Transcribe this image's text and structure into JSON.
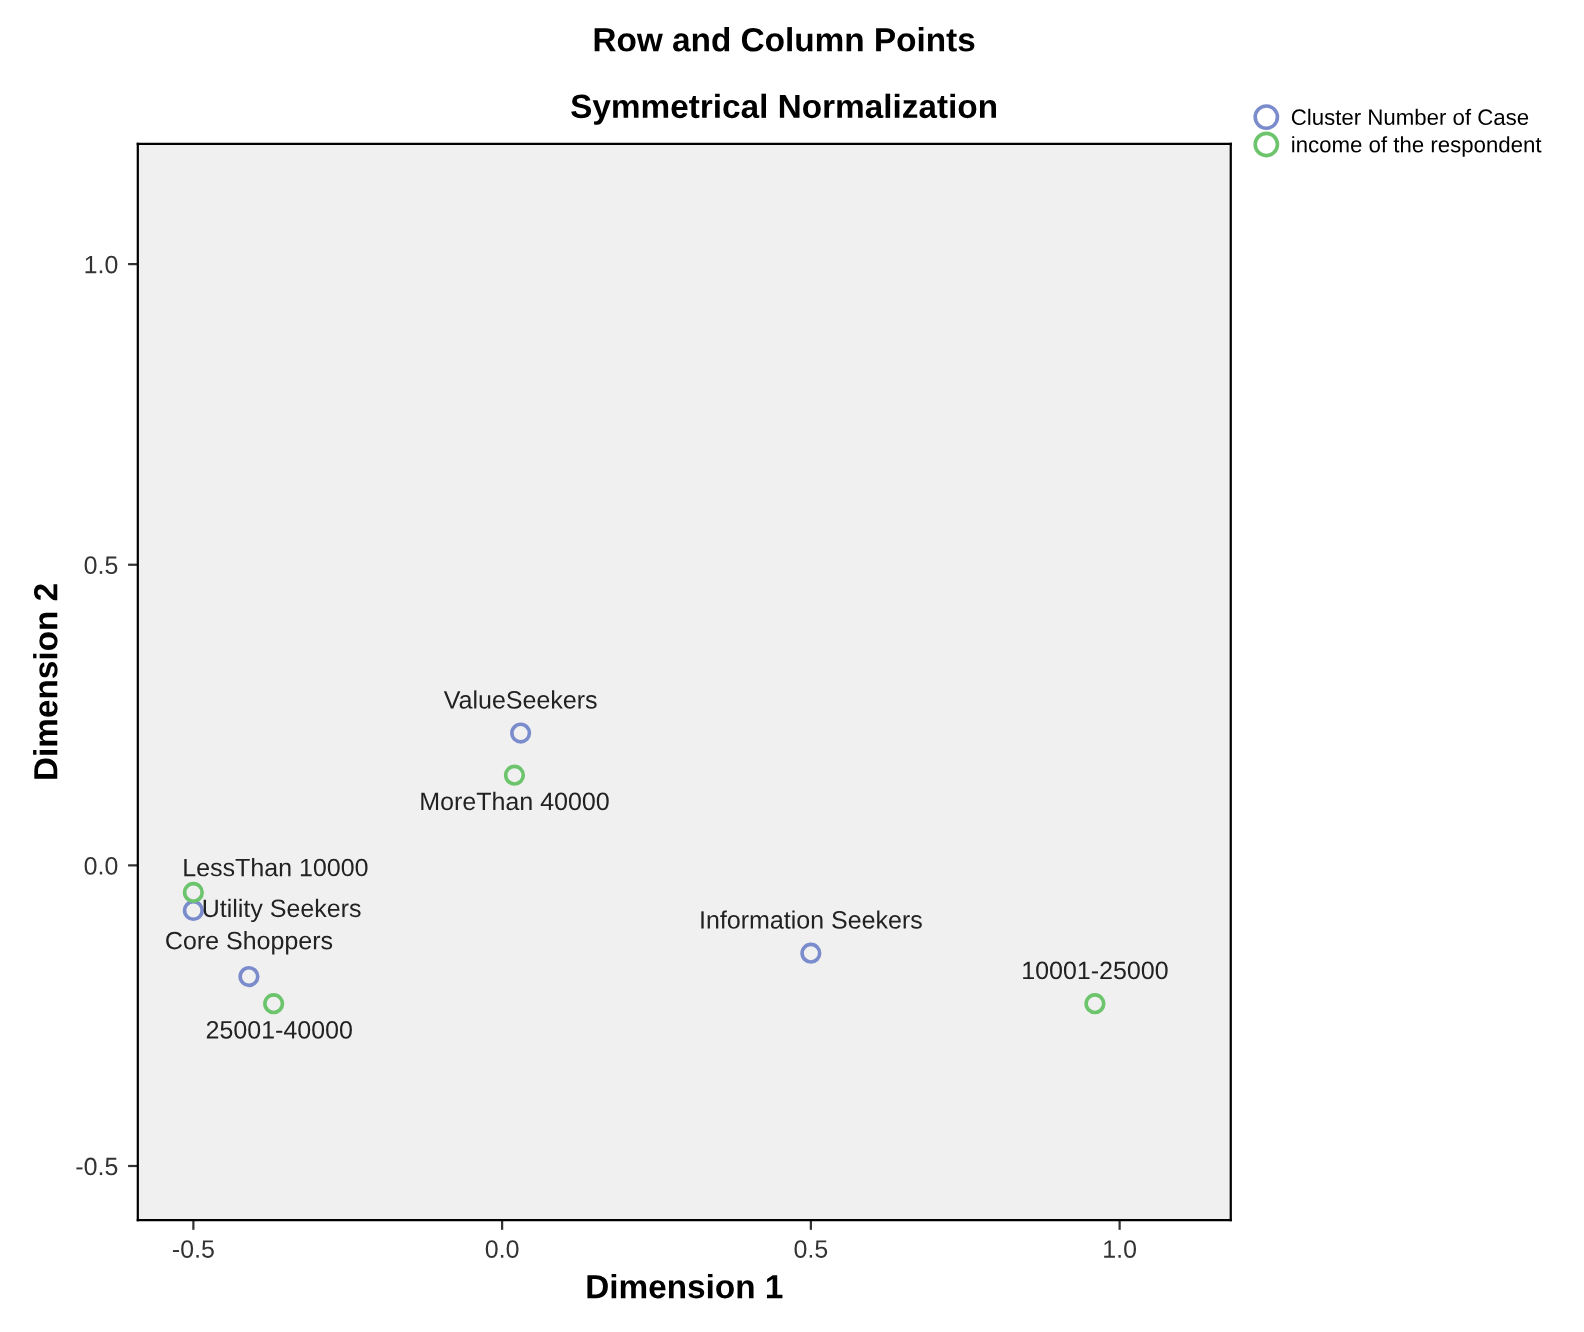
{
  "chart_data": {
    "type": "scatter",
    "title": "Row and Column Points",
    "subtitle": "Symmetrical Normalization",
    "xlabel": "Dimension 1",
    "ylabel": "Dimension 2",
    "series": [
      {
        "name": "Cluster Number of Case",
        "color": "#7b8ccc",
        "x": [
          0.03,
          -0.5,
          -0.41,
          0.5
        ],
        "values": [
          0.22,
          -0.075,
          -0.185,
          -0.146
        ]
      },
      {
        "name": "income of the respondent",
        "color": "#6cc46c",
        "x": [
          0.02,
          -0.5,
          -0.37,
          0.96
        ],
        "values": [
          0.15,
          -0.045,
          -0.23,
          -0.23
        ]
      }
    ],
    "annotations": [
      {
        "text": "ValueSeekers",
        "x": 0.03,
        "y": 0.22
      },
      {
        "text": "MoreThan 40000",
        "x": 0.02,
        "y": 0.15
      },
      {
        "text": "LessThan 10000",
        "x": -0.5,
        "y": -0.045
      },
      {
        "text": "Utility Seekers",
        "x": -0.5,
        "y": -0.075
      },
      {
        "text": "Core Shoppers",
        "x": -0.41,
        "y": -0.185
      },
      {
        "text": "25001-40000",
        "x": -0.37,
        "y": -0.23
      },
      {
        "text": "Information Seekers",
        "x": 0.5,
        "y": -0.146
      },
      {
        "text": "10001-25000",
        "x": 0.96,
        "y": -0.23
      }
    ],
    "xlim": [
      -0.59,
      1.18
    ],
    "ylim": [
      -0.59,
      1.2
    ],
    "xticks": [
      {
        "value": -0.5,
        "label": "-0.5"
      },
      {
        "value": 0,
        "label": "0.0"
      },
      {
        "value": 0.5,
        "label": "0.5"
      },
      {
        "value": 1,
        "label": "1.0"
      }
    ],
    "yticks": [
      {
        "value": -0.5,
        "label": "-0.5"
      },
      {
        "value": 0,
        "label": "0.0"
      },
      {
        "value": 0.5,
        "label": "0.5"
      },
      {
        "value": 1,
        "label": "1.0"
      }
    ],
    "marker": "circle",
    "grid": false,
    "legend": "top right"
  }
}
